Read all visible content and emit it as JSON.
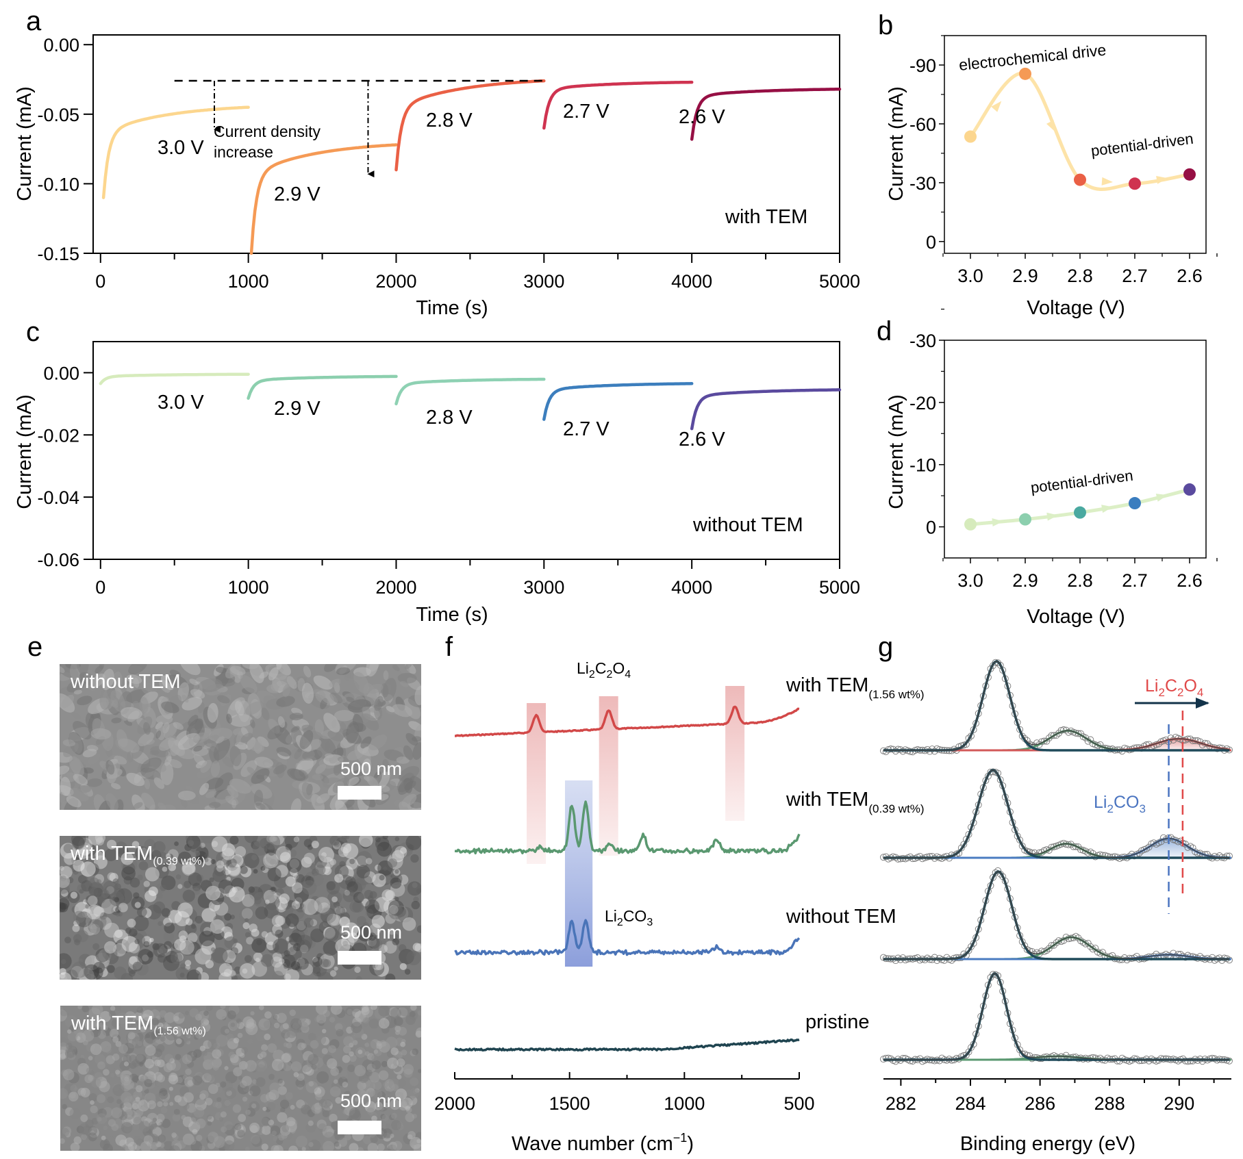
{
  "figure": {
    "panel_labels": [
      "a",
      "b",
      "c",
      "d",
      "e",
      "f",
      "g"
    ]
  },
  "chart_data": [
    {
      "panel": "a",
      "type": "line",
      "title": "",
      "xlabel": "Time (s)",
      "ylabel": "Current (mA)",
      "xlim": [
        -50,
        5000
      ],
      "ylim": [
        -0.15,
        0.007
      ],
      "xticks": [
        0,
        1000,
        2000,
        3000,
        4000,
        5000
      ],
      "yticks": [
        0.0,
        -0.05,
        -0.1,
        -0.15
      ],
      "ytick_labels": [
        "0.00",
        "-0.05",
        "-0.10",
        "-0.15"
      ],
      "corner_label": "with TEM",
      "series": [
        {
          "name": "3.0 V",
          "color": "#fcd68e",
          "t_start": 20,
          "t_end": 1000,
          "i_start": -0.11,
          "i_knee": -0.063,
          "i_end": -0.045
        },
        {
          "name": "2.9 V",
          "color": "#f59a55",
          "t_start": 1020,
          "t_end": 2000,
          "i_start": -0.15,
          "i_knee": -0.093,
          "i_end": -0.072
        },
        {
          "name": "2.8 V",
          "color": "#ea6045",
          "t_start": 2000,
          "t_end": 3000,
          "i_start": -0.09,
          "i_knee": -0.045,
          "i_end": -0.026
        },
        {
          "name": "2.7 V",
          "color": "#cf3350",
          "t_start": 3000,
          "t_end": 4000,
          "i_start": -0.06,
          "i_knee": -0.032,
          "i_end": -0.027
        },
        {
          "name": "2.6 V",
          "color": "#960f44",
          "t_start": 4000,
          "t_end": 5000,
          "i_start": -0.068,
          "i_knee": -0.037,
          "i_end": -0.032
        }
      ],
      "annotations": {
        "reference_level": -0.026,
        "arrow_text_line1": "Current density",
        "arrow_text_line2": "increase"
      }
    },
    {
      "panel": "b",
      "type": "scatter",
      "xlabel": "Voltage (V)",
      "ylabel": "Current (mA)",
      "categories": [
        "3.0",
        "2.9",
        "2.8",
        "2.7",
        "2.6"
      ],
      "ylim": [
        6,
        -105
      ],
      "yticks": [
        0,
        -30,
        -60,
        -90
      ],
      "ytick_labels": [
        "0",
        "-30",
        "-60",
        "-90"
      ],
      "values": [
        -53.5,
        -85.5,
        -31.5,
        -29.5,
        -34.2
      ],
      "point_colors": [
        "#fcd68e",
        "#f59a55",
        "#ea6045",
        "#cf3350",
        "#960f44"
      ],
      "line_color": "#fde3a8",
      "annotations": [
        "electrochemical drive",
        "potential-driven"
      ]
    },
    {
      "panel": "c",
      "type": "line",
      "xlabel": "Time (s)",
      "ylabel": "Current (mA)",
      "xlim": [
        -50,
        5000
      ],
      "ylim": [
        -0.06,
        0.01
      ],
      "xticks": [
        0,
        1000,
        2000,
        3000,
        4000,
        5000
      ],
      "yticks": [
        0.0,
        -0.02,
        -0.04,
        -0.06
      ],
      "ytick_labels": [
        "0.00",
        "-0.02",
        "-0.04",
        "-0.06"
      ],
      "corner_label": "without TEM",
      "series": [
        {
          "name": "3.0 V",
          "color": "#d6ebbc",
          "t_start": 0,
          "t_end": 1000,
          "i_start": -0.0035,
          "i_knee": -0.0012,
          "i_end": -0.0005
        },
        {
          "name": "2.9 V",
          "color": "#8ccfae",
          "t_start": 1000,
          "t_end": 2000,
          "i_start": -0.0082,
          "i_knee": -0.0025,
          "i_end": -0.0012
        },
        {
          "name": "2.8 V",
          "color": "#8ed1b3",
          "t_start": 2000,
          "t_end": 3000,
          "i_start": -0.01,
          "i_knee": -0.0035,
          "i_end": -0.0021
        },
        {
          "name": "2.7 V",
          "color": "#3c7ebd",
          "t_start": 3000,
          "t_end": 4000,
          "i_start": -0.015,
          "i_knee": -0.0055,
          "i_end": -0.0035
        },
        {
          "name": "2.6 V",
          "color": "#5a4a9e",
          "t_start": 4000,
          "t_end": 5000,
          "i_start": -0.018,
          "i_knee": -0.0075,
          "i_end": -0.0055
        }
      ]
    },
    {
      "panel": "d",
      "type": "scatter",
      "xlabel": "Voltage (V)",
      "ylabel": "Current (mA)",
      "categories": [
        "3.0",
        "2.9",
        "2.8",
        "2.7",
        "2.6"
      ],
      "ylim": [
        5,
        -30
      ],
      "yticks": [
        0,
        -10,
        -20,
        -30
      ],
      "ytick_labels": [
        "0",
        "-10",
        "-20",
        "-30"
      ],
      "values": [
        -0.4,
        -1.2,
        -2.3,
        -3.8,
        -6.0
      ],
      "point_colors": [
        "#d6ebbc",
        "#8ccfae",
        "#4aa9a0",
        "#3a7dbf",
        "#5a4a9e"
      ],
      "line_color": "#dcefc6",
      "annotations": [
        "potential-driven"
      ]
    },
    {
      "panel": "f",
      "type": "line",
      "xlabel": "Wave number (cm",
      "xlabel_sup": "−1",
      "xlabel_tail": ")",
      "xlim": [
        2000,
        500
      ],
      "xticks": [
        2000,
        1500,
        1000,
        500
      ],
      "series": [
        {
          "name": "with TEM",
          "subscript": "(1.56 wt%)",
          "color": "#d24848",
          "peaks": [
            [
              1645,
              0.55
            ],
            [
              1330,
              0.6
            ],
            [
              780,
              0.55
            ]
          ]
        },
        {
          "name": "with TEM",
          "subscript": "(0.39 wt%)",
          "color": "#5a9870",
          "peaks": [
            [
              1490,
              1.5
            ],
            [
              1430,
              1.6
            ],
            [
              1625,
              0.12
            ],
            [
              1325,
              0.2
            ],
            [
              1180,
              0.5
            ],
            [
              860,
              0.35
            ]
          ]
        },
        {
          "name": "without TEM",
          "subscript": "",
          "color": "#4a74b8",
          "peaks": [
            [
              1490,
              1.0
            ],
            [
              1430,
              1.05
            ],
            [
              860,
              0.2
            ]
          ]
        },
        {
          "name": "pristine",
          "subscript": "",
          "color": "#1f4450",
          "peaks": []
        }
      ],
      "highlight_bands": [
        {
          "label": "Li2C2O4",
          "color": "#e8a2a2",
          "center": 1645
        },
        {
          "label": "Li2C2O4",
          "color": "#e8a2a2",
          "center": 1330
        },
        {
          "label": "Li2C2O4",
          "color": "#e8a2a2",
          "center": 780
        },
        {
          "label": "Li2CO3",
          "color": "#8ea2dc",
          "center": 1460
        }
      ],
      "annotations": {
        "li2c2o4": {
          "base": "Li",
          "s1": "2",
          "mid": "C",
          "s2": "2",
          "end": "O",
          "s3": "4"
        },
        "li2co3": {
          "base": "Li",
          "s1": "2",
          "mid": "CO",
          "s2": "3"
        }
      }
    },
    {
      "panel": "g",
      "type": "line",
      "xlabel": "Binding energy (eV)",
      "xlim": [
        281.5,
        291.5
      ],
      "xticks": [
        282,
        284,
        286,
        288,
        290
      ],
      "series": [
        {
          "name": "with TEM (1.56 wt%)",
          "components": [
            [
              284.75,
              1.0,
              0.55
            ],
            [
              286.8,
              0.22,
              0.75
            ],
            [
              290.0,
              0.13,
              0.9
            ]
          ],
          "third_color": "#d25858"
        },
        {
          "name": "with TEM (0.39 wt%)",
          "components": [
            [
              284.65,
              1.0,
              0.6
            ],
            [
              286.75,
              0.16,
              0.65
            ],
            [
              289.7,
              0.22,
              0.75
            ]
          ],
          "third_color": "#4a7bc0"
        },
        {
          "name": "without TEM",
          "components": [
            [
              284.8,
              1.0,
              0.55
            ],
            [
              286.9,
              0.25,
              0.75
            ],
            [
              289.7,
              0.05,
              0.8
            ]
          ],
          "third_color": "#4a7bc0"
        },
        {
          "name": "pristine",
          "components": [
            [
              284.7,
              1.0,
              0.48
            ],
            [
              286.5,
              0.04,
              0.9
            ]
          ],
          "third_color": "#5a9870"
        }
      ],
      "main_color": "#1f4a5a",
      "second_color": "#5a9870",
      "reference_lines": [
        {
          "label": "Li2CO3",
          "x": 289.7,
          "color": "#4a74c0"
        },
        {
          "label": "Li2C2O4",
          "x": 290.1,
          "color": "#e04848"
        }
      ],
      "annotations": {
        "li2c2o4": {
          "base": "Li",
          "s1": "2",
          "mid": "C",
          "s2": "2",
          "end": "O",
          "s3": "4"
        },
        "li2co3": {
          "base": "Li",
          "s1": "2",
          "mid": "CO",
          "s2": "3"
        }
      }
    }
  ],
  "sem_images": [
    {
      "label": "without TEM",
      "subscript": "",
      "scale_bar": "500 nm",
      "tone": "flakes"
    },
    {
      "label": "with TEM",
      "subscript": "(0.39 wt%)",
      "scale_bar": "500 nm",
      "tone": "clusters"
    },
    {
      "label": "with TEM",
      "subscript": "(1.56 wt%)",
      "scale_bar": "500 nm",
      "tone": "fine"
    }
  ]
}
